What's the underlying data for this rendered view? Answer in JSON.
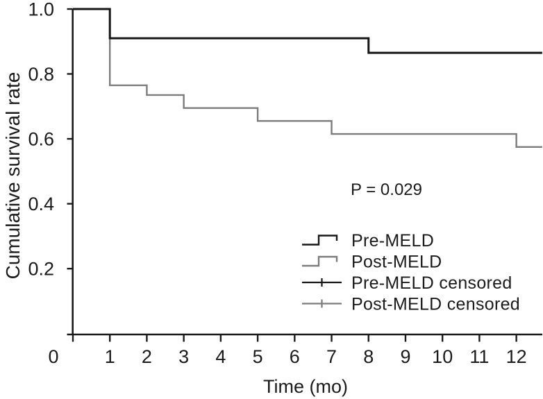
{
  "figure": {
    "background": "#ffffff",
    "p_value": "P = 0.029"
  },
  "chart_data": {
    "type": "line",
    "subtype": "kaplan-meier-step",
    "title": "",
    "xlabel": "Time (mo)",
    "ylabel": "Cumulative survival rate",
    "xlim": [
      0,
      12.7
    ],
    "ylim": [
      0,
      1.0
    ],
    "x_ticks": [
      0,
      1,
      2,
      3,
      4,
      5,
      6,
      7,
      8,
      9,
      10,
      11,
      12
    ],
    "y_ticks": [
      0.2,
      0.4,
      0.6,
      0.8,
      1.0
    ],
    "grid": false,
    "annotation": "P = 0.029",
    "axis_color": "#1a1a1a",
    "series": [
      {
        "name": "Pre-MELD",
        "color": "#161616",
        "line_width": 3,
        "steps": [
          {
            "t": 0,
            "survival": 1.0
          },
          {
            "t": 1,
            "survival": 0.91
          },
          {
            "t": 8,
            "survival": 0.865
          }
        ],
        "end_t": 12.7
      },
      {
        "name": "Post-MELD",
        "color": "#7b7b7b",
        "line_width": 2.4,
        "steps": [
          {
            "t": 0,
            "survival": 1.0
          },
          {
            "t": 1,
            "survival": 0.765
          },
          {
            "t": 2,
            "survival": 0.735
          },
          {
            "t": 3,
            "survival": 0.695
          },
          {
            "t": 5,
            "survival": 0.655
          },
          {
            "t": 7,
            "survival": 0.615
          },
          {
            "t": 12,
            "survival": 0.575
          }
        ],
        "end_t": 12.7
      }
    ],
    "legend_position": "lower right",
    "legend": [
      {
        "label": "Pre-MELD",
        "color": "#161616",
        "symbol": "step"
      },
      {
        "label": "Post-MELD",
        "color": "#7b7b7b",
        "symbol": "step"
      },
      {
        "label": "Pre-MELD censored",
        "color": "#161616",
        "symbol": "censored"
      },
      {
        "label": "Post-MELD censored",
        "color": "#7b7b7b",
        "symbol": "censored"
      }
    ]
  }
}
